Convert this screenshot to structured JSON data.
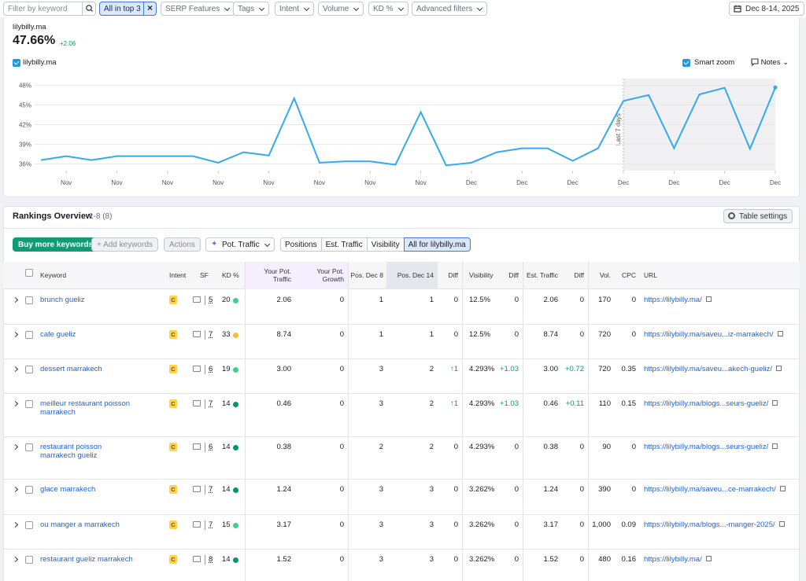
{
  "filters": {
    "search_placeholder": "Filter by keyword",
    "active": "All in top 3",
    "dropdowns": [
      "SERP Features",
      "Tags",
      "Intent",
      "Volume",
      "KD %",
      "Advanced filters"
    ],
    "date_range": "Dec 8-14, 2025"
  },
  "summary": {
    "domain": "lilybilly.ma",
    "value": "47.66%",
    "change": "+2.06",
    "smart_zoom": "Smart zoom",
    "notes": "Notes"
  },
  "chart": {
    "type": "line",
    "categories": [
      null,
      "Nov",
      null,
      "Nov",
      null,
      "Nov",
      null,
      "Nov",
      null,
      "Nov",
      null,
      "Nov",
      null,
      "Nov",
      null,
      "Nov",
      null,
      "Dec",
      null,
      "Dec",
      null,
      "Dec",
      null,
      "Dec",
      null,
      "Dec",
      null,
      "Dec",
      null,
      "Dec"
    ],
    "series": [
      {
        "name": "lilybilly.ma",
        "color": "#33aaf0",
        "values": [
          36.6,
          37.2,
          36.6,
          37.2,
          37.2,
          37.2,
          37.2,
          36.2,
          37.8,
          37.3,
          46.0,
          36.2,
          36.4,
          36.4,
          35.9,
          43.9,
          35.8,
          36.2,
          37.8,
          38.4,
          38.4,
          36.5,
          38.4,
          45.6,
          46.5,
          38.4,
          46.6,
          47.6,
          38.3,
          47.66
        ]
      }
    ],
    "ylim": [
      35,
      49
    ],
    "yticks": [
      {
        "value": 36,
        "label": "36%"
      },
      {
        "value": 39,
        "label": "39%"
      },
      {
        "value": 42,
        "label": "42%"
      },
      {
        "value": 45,
        "label": "45%"
      },
      {
        "value": 48,
        "label": "48%"
      }
    ],
    "grid": true,
    "highlight": {
      "label": "Last 7 days",
      "from": 23
    }
  },
  "rankings": {
    "title": "Rankings Overview",
    "count": "1-8 (8)",
    "table_settings": "Table settings",
    "buttons": [
      "Buy more keywords",
      "Add keywords",
      "Actions"
    ],
    "metric_select": "Pot. Traffic",
    "tabs": [
      "Positions",
      "Est. Traffic",
      "Visibility",
      "All for lilybilly.ma"
    ],
    "active_tab": 3,
    "table": {
      "columns": [
        "Keyword",
        "Intent",
        "SF",
        "KD %",
        "Your Pot. Traffic",
        "Your Pot. Growth",
        "Pos. Dec 8",
        "Pos. Dec 14",
        "Diff",
        "Visibility",
        "Diff",
        "Est. Traffic",
        "Diff",
        "Vol.",
        "CPC",
        "URL"
      ],
      "rows": [
        {
          "keyword": "brunch gueliz",
          "intent": "C",
          "sf": "5",
          "kd": "20",
          "kd_color": "#3fd08f",
          "cells": [
            "2.06",
            "0",
            "1",
            "1",
            "0",
            "12.5%",
            "0",
            "2.06",
            "0",
            "170",
            "0"
          ],
          "url": "https://lilybilly.ma/"
        },
        {
          "keyword": "cafe gueliz",
          "intent": "C",
          "sf": "7",
          "kd": "33",
          "kd_color": "#fbbd2d",
          "cells": [
            "8.74",
            "0",
            "1",
            "1",
            "0",
            "12.5%",
            "0",
            "8.74",
            "0",
            "720",
            "0"
          ],
          "url": "https://lilybilly.ma/saveu...iz-marrakech/"
        },
        {
          "keyword": "dessert marrakech",
          "intent": "C",
          "sf": "6",
          "kd": "19",
          "kd_color": "#3fd08f",
          "cells": [
            "3.00",
            "0",
            "3",
            "2",
            "↑1",
            "4.293%",
            "+1.03",
            "3.00",
            "+0.72",
            "720",
            "0.35"
          ],
          "url": "https://lilybilly.ma/saveu...akech-gueliz/"
        },
        {
          "keyword": "meilleur restaurant poisson marrakech",
          "intent": "C",
          "sf": "7",
          "kd": "14",
          "kd_color": "#049669",
          "cells": [
            "0.46",
            "0",
            "3",
            "2",
            "↑1",
            "4.293%",
            "+1.03",
            "0.46",
            "+0.11",
            "110",
            "0.15"
          ],
          "url": "https://lilybilly.ma/blogs...seurs-gueliz/"
        },
        {
          "keyword": "restaurant poisson marrakech gueliz",
          "intent": "C",
          "sf": "6",
          "kd": "14",
          "kd_color": "#049669",
          "cells": [
            "0.38",
            "0",
            "2",
            "2",
            "0",
            "4.293%",
            "0",
            "0.38",
            "0",
            "90",
            "0"
          ],
          "url": "https://lilybilly.ma/blogs...seurs-gueliz/"
        },
        {
          "keyword": "glace marrakech",
          "intent": "C",
          "sf": "7",
          "kd": "14",
          "kd_color": "#049669",
          "cells": [
            "1.24",
            "0",
            "3",
            "3",
            "0",
            "3.262%",
            "0",
            "1.24",
            "0",
            "390",
            "0"
          ],
          "url": "https://lilybilly.ma/saveu...ce-marrakech/"
        },
        {
          "keyword": "ou manger a marrakech",
          "intent": "C",
          "sf": "7",
          "kd": "15",
          "kd_color": "#3fd08f",
          "cells": [
            "3.17",
            "0",
            "3",
            "3",
            "0",
            "3.262%",
            "0",
            "3.17",
            "0",
            "1,000",
            "0.09"
          ],
          "url": "https://lilybilly.ma/blogs...-manger-2025/"
        },
        {
          "keyword": "restaurant gueliz marrakech",
          "intent": "C",
          "sf": "8",
          "kd": "14",
          "kd_color": "#049669",
          "cells": [
            "1.52",
            "0",
            "3",
            "3",
            "0",
            "3.262%",
            "0",
            "1.52",
            "0",
            "480",
            "0.16"
          ],
          "url": "https://lilybilly.ma/"
        }
      ]
    }
  }
}
